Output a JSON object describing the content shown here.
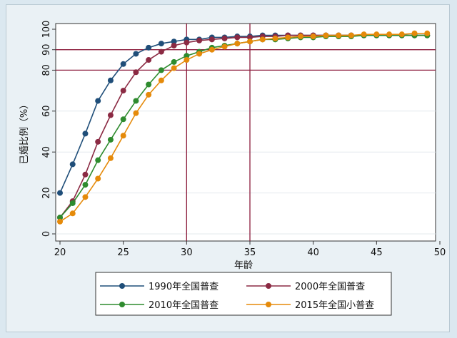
{
  "chart_data": {
    "type": "line",
    "xlabel": "年龄",
    "ylabel": "已婚比例（%）",
    "xlim": [
      20,
      50
    ],
    "ylim": [
      0,
      100
    ],
    "xticks": [
      20,
      25,
      30,
      35,
      40,
      45,
      50
    ],
    "yticks": [
      0,
      20,
      40,
      60,
      80,
      90,
      100
    ],
    "reference_lines": {
      "horizontal": [
        80,
        90
      ],
      "vertical": [
        30,
        35
      ],
      "color": "#8b1c3c"
    },
    "legend_position": "bottom",
    "x": [
      20,
      21,
      22,
      23,
      24,
      25,
      26,
      27,
      28,
      29,
      30,
      31,
      32,
      33,
      34,
      35,
      36,
      37,
      38,
      39,
      40,
      41,
      42,
      43,
      44,
      45,
      46,
      47,
      48,
      49
    ],
    "series": [
      {
        "name": "1990年全国普查",
        "color": "#1f4e79",
        "values": [
          20,
          34,
          49,
          65,
          75,
          83,
          88,
          91,
          93,
          94,
          95,
          95,
          96,
          96,
          96.5,
          96.5,
          97,
          97,
          97,
          97,
          97,
          97,
          97,
          97,
          97,
          97,
          97,
          97,
          97,
          97
        ]
      },
      {
        "name": "2000年全国普查",
        "color": "#8b2a43",
        "values": [
          8,
          16,
          29,
          45,
          58,
          70,
          79,
          85,
          89,
          92,
          93.5,
          94.5,
          95,
          95.5,
          96,
          96,
          96.5,
          96.5,
          97,
          97,
          97,
          97,
          97,
          97,
          97,
          97,
          97,
          97,
          97,
          97
        ]
      },
      {
        "name": "2010年全国普查",
        "color": "#2e8b2e",
        "values": [
          8,
          15,
          24,
          36,
          46,
          56,
          65,
          73,
          80,
          84,
          87,
          89,
          91,
          92,
          93,
          94,
          95,
          95,
          95.5,
          96,
          96,
          96.5,
          96.5,
          96.5,
          97,
          97,
          97,
          97,
          97,
          97
        ]
      },
      {
        "name": "2015年全国小普查",
        "color": "#e58a0a",
        "values": [
          6,
          10,
          18,
          27,
          37,
          48,
          59,
          68,
          75,
          81,
          85,
          88,
          90,
          91.5,
          93,
          94,
          95,
          95.5,
          96,
          96.5,
          96.5,
          97,
          97,
          97,
          97.5,
          97.5,
          97.5,
          97.5,
          98,
          98
        ]
      }
    ]
  }
}
